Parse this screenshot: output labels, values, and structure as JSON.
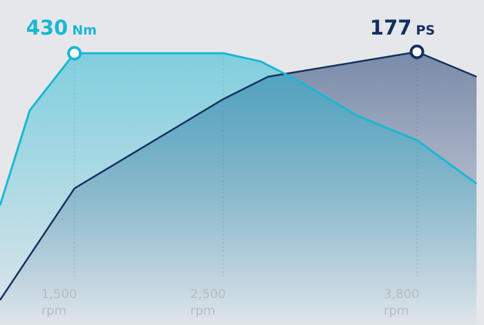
{
  "chart_data": {
    "type": "area",
    "x_unit": "rpm",
    "xlim": [
      1000,
      4250
    ],
    "ticks": [
      {
        "value": 1500,
        "label": "1,500",
        "unit": "rpm"
      },
      {
        "value": 2500,
        "label": "2,500",
        "unit": "rpm"
      },
      {
        "value": 3800,
        "label": "3,800",
        "unit": "rpm"
      }
    ],
    "series": [
      {
        "unit": "Nm",
        "color": "#1ab7d3",
        "peak": {
          "x": 1500,
          "value": "430",
          "unit": "Nm"
        },
        "points": [
          [
            1000,
            0.44
          ],
          [
            1200,
            0.79
          ],
          [
            1500,
            1.0
          ],
          [
            2500,
            1.0
          ],
          [
            2750,
            0.97
          ],
          [
            3000,
            0.9
          ],
          [
            3400,
            0.77
          ],
          [
            3800,
            0.68
          ],
          [
            4200,
            0.52
          ]
        ]
      },
      {
        "unit": "PS",
        "color": "#12305e",
        "peak": {
          "x": 3800,
          "value": "177",
          "unit": "PS"
        },
        "points": [
          [
            1000,
            0.0
          ],
          [
            1500,
            0.45
          ],
          [
            2500,
            0.81
          ],
          [
            2800,
            0.9
          ],
          [
            3400,
            0.96
          ],
          [
            3800,
            1.0
          ],
          [
            4200,
            0.9
          ]
        ]
      }
    ]
  }
}
